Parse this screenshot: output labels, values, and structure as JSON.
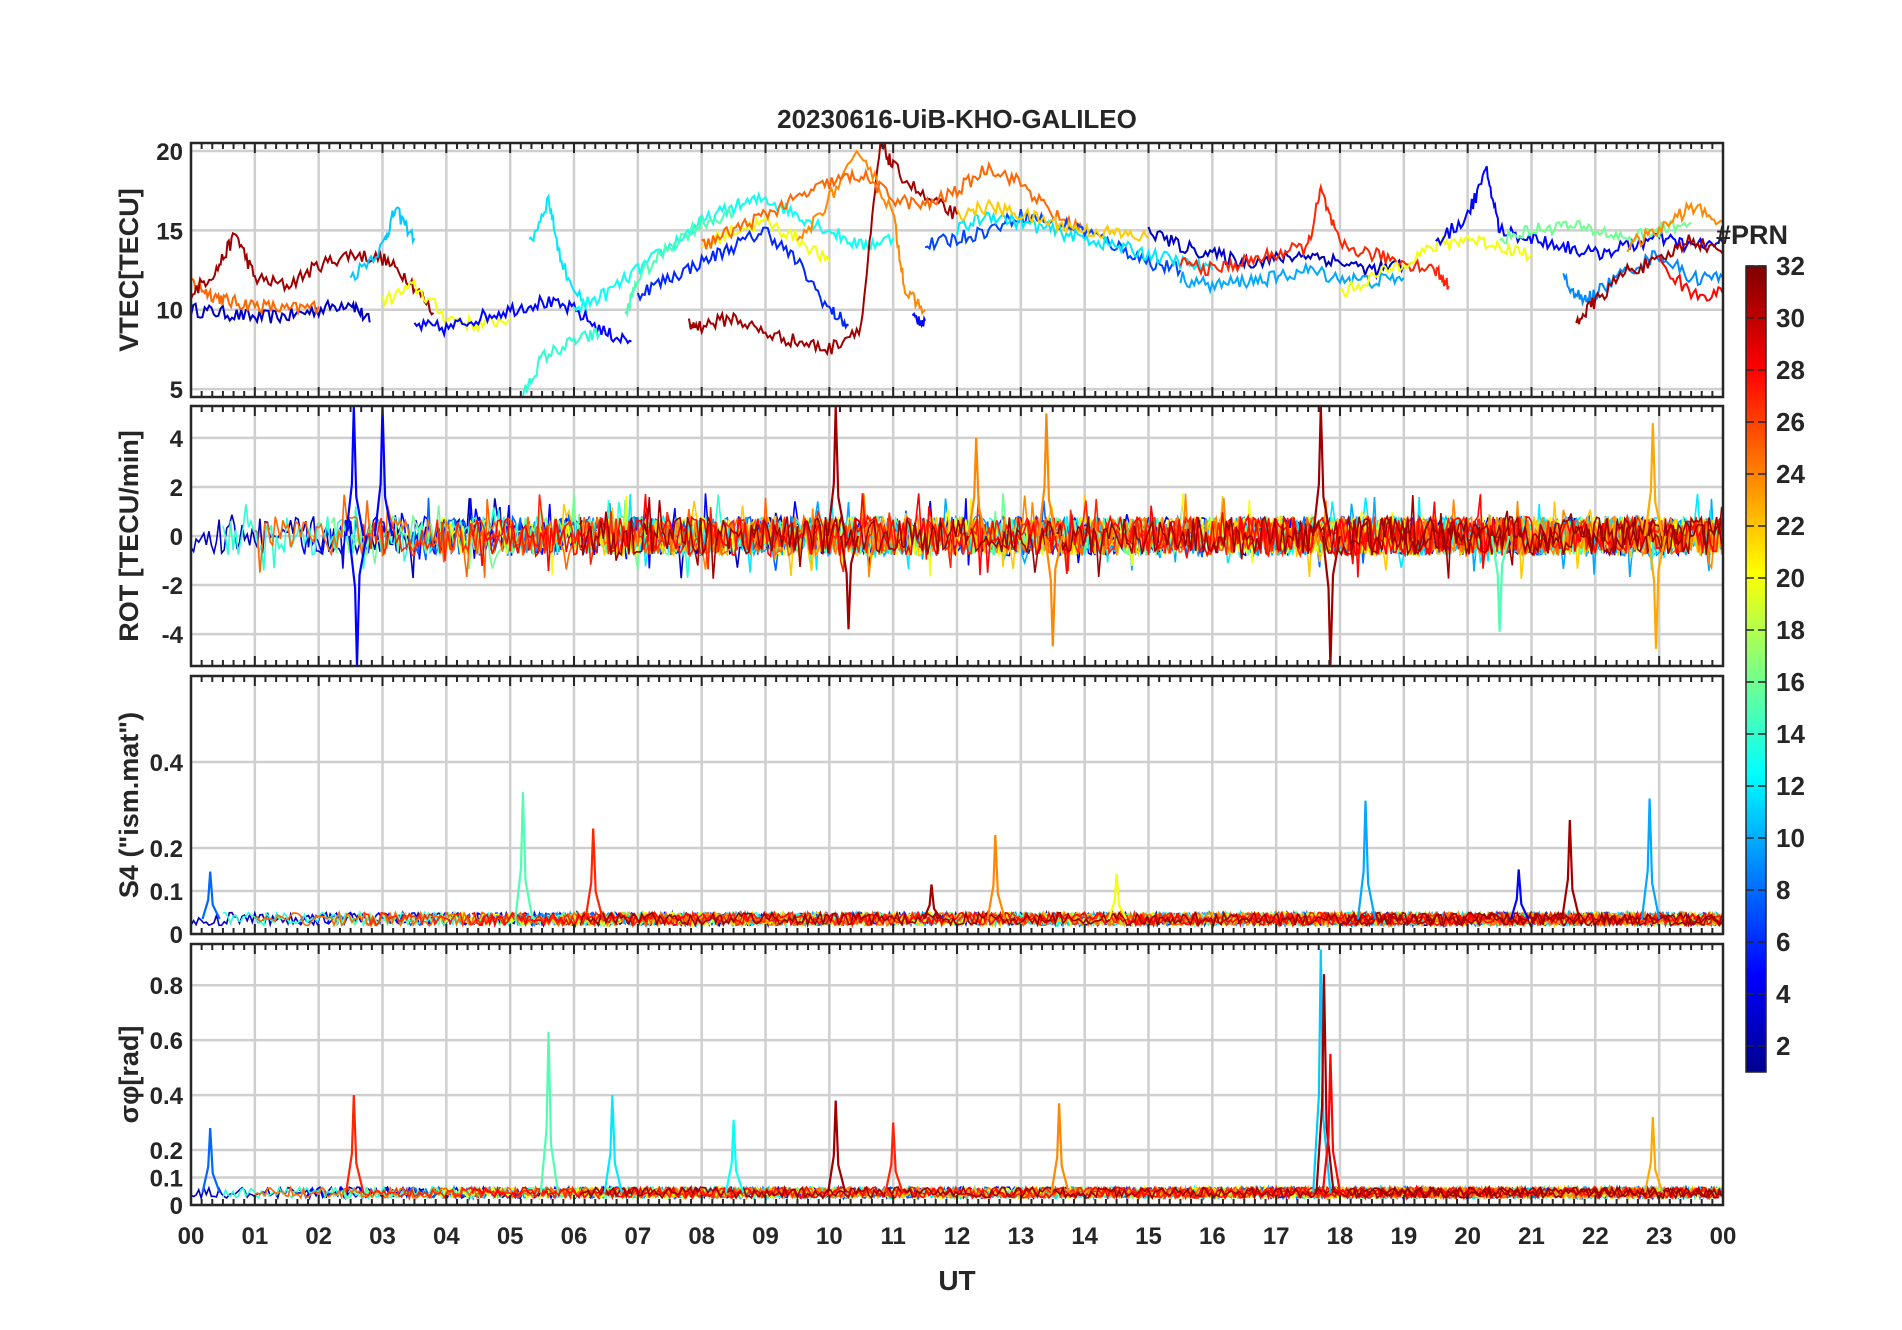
{
  "figure": {
    "title": "20230616-UiB-KHO-GALILEO",
    "xlabel": "UT",
    "x_ticks": [
      "00",
      "01",
      "02",
      "03",
      "04",
      "05",
      "06",
      "07",
      "08",
      "09",
      "10",
      "11",
      "12",
      "13",
      "14",
      "15",
      "16",
      "17",
      "18",
      "19",
      "20",
      "21",
      "22",
      "23",
      "00"
    ]
  },
  "colorbar": {
    "label": "#PRN",
    "min": 1,
    "max": 32,
    "ticks": [
      "2",
      "4",
      "6",
      "8",
      "10",
      "12",
      "14",
      "16",
      "18",
      "20",
      "22",
      "24",
      "26",
      "28",
      "30",
      "32"
    ],
    "colormap": "jet"
  },
  "chart_data": [
    {
      "type": "line",
      "panel": "vtec",
      "ylabel": "VTEC[TECU]",
      "ylim": [
        4.5,
        20.5
      ],
      "yticks": [
        "5",
        "10",
        "15",
        "20"
      ],
      "xlim": [
        0,
        24
      ],
      "grid": true,
      "series": [
        {
          "prn": 3,
          "x": [
            0.0,
            0.5,
            1.0,
            1.5,
            2.0,
            2.5,
            2.8
          ],
          "y": [
            10.0,
            9.8,
            9.5,
            9.6,
            10.0,
            10.5,
            9.2
          ]
        },
        {
          "prn": 25,
          "x": [
            0.0,
            0.3,
            0.6,
            1.0,
            1.5,
            2.0
          ],
          "y": [
            11.8,
            11.0,
            10.5,
            10.3,
            10.0,
            10.2
          ]
        },
        {
          "prn": 31,
          "x": [
            0.0,
            0.4,
            0.7,
            1.0,
            1.5,
            2.0,
            2.5,
            3.0,
            3.4,
            3.8
          ],
          "y": [
            11.0,
            12.5,
            14.8,
            12.0,
            11.5,
            12.8,
            13.5,
            13.2,
            12.0,
            9.8
          ]
        },
        {
          "prn": 11,
          "x": [
            2.5,
            3.0,
            3.2,
            3.5
          ],
          "y": [
            12.0,
            14.0,
            16.3,
            14.5
          ]
        },
        {
          "prn": 20,
          "x": [
            3.0,
            3.5,
            4.0,
            4.5,
            5.0
          ],
          "y": [
            10.5,
            11.5,
            9.5,
            9.0,
            9.5
          ]
        },
        {
          "prn": 12,
          "x": [
            5.3,
            5.6,
            5.8,
            6.2
          ],
          "y": [
            14.0,
            17.0,
            13.0,
            9.8
          ]
        },
        {
          "prn": 5,
          "x": [
            3.5,
            4.0,
            4.5,
            5.0,
            5.5,
            6.0,
            6.5,
            6.9
          ],
          "y": [
            9.0,
            8.8,
            9.5,
            10.0,
            10.5,
            10.0,
            8.5,
            8.0
          ]
        },
        {
          "prn": 14,
          "x": [
            5.2,
            5.5,
            6.0,
            6.4
          ],
          "y": [
            4.5,
            7.0,
            8.0,
            8.5
          ]
        },
        {
          "prn": 13,
          "x": [
            6.0,
            6.5,
            7.0,
            7.5,
            8.0,
            8.5,
            9.0,
            9.5,
            10.0,
            10.5,
            11.0
          ],
          "y": [
            10.0,
            11.0,
            12.5,
            14.0,
            15.5,
            16.5,
            17.0,
            16.0,
            15.0,
            14.0,
            14.5
          ]
        },
        {
          "prn": 6,
          "x": [
            7.0,
            7.5,
            8.0,
            8.5,
            9.0,
            9.5,
            10.0,
            10.3
          ],
          "y": [
            11.0,
            12.0,
            13.0,
            14.0,
            15.0,
            13.0,
            10.0,
            9.0
          ]
        },
        {
          "prn": 15,
          "x": [
            6.8,
            7.0,
            7.5,
            8.0,
            8.5
          ],
          "y": [
            9.5,
            12.0,
            14.0,
            15.5,
            16.0
          ]
        },
        {
          "prn": 20,
          "x": [
            8.0,
            8.5,
            9.0,
            9.5,
            10.0
          ],
          "y": [
            14.0,
            15.0,
            15.5,
            14.5,
            13.0
          ]
        },
        {
          "prn": 31,
          "x": [
            7.8,
            8.0,
            8.5,
            9.0,
            9.5,
            10.0,
            10.5,
            10.8,
            11.0,
            11.5,
            12.0
          ],
          "y": [
            9.0,
            9.0,
            9.5,
            8.5,
            8.0,
            7.5,
            9.0,
            20.5,
            19.0,
            17.0,
            16.0
          ]
        },
        {
          "prn": 24,
          "x": [
            9.5,
            10.0,
            10.5,
            11.0,
            11.2,
            11.5
          ],
          "y": [
            14.0,
            17.0,
            20.0,
            16.0,
            11.0,
            10.0
          ]
        },
        {
          "prn": 25,
          "x": [
            8.0,
            8.5,
            9.0,
            9.5,
            10.0,
            10.5,
            11.0,
            11.5,
            12.0,
            12.5,
            13.0,
            13.5,
            14.0
          ],
          "y": [
            14.0,
            15.0,
            16.0,
            17.0,
            18.0,
            18.5,
            17.0,
            16.5,
            17.5,
            19.0,
            18.0,
            16.0,
            15.0
          ]
        },
        {
          "prn": 5,
          "x": [
            11.3,
            11.5
          ],
          "y": [
            9.5,
            9.3
          ]
        },
        {
          "prn": 7,
          "x": [
            11.5,
            12.0,
            12.5,
            13.0,
            13.5,
            14.0,
            14.5,
            15.0,
            15.5
          ],
          "y": [
            14.0,
            14.5,
            15.0,
            16.0,
            15.5,
            15.0,
            14.0,
            13.0,
            12.5
          ]
        },
        {
          "prn": 12,
          "x": [
            12.0,
            12.5,
            13.0,
            13.5,
            14.0,
            14.5,
            15.0,
            15.5,
            16.0
          ],
          "y": [
            15.0,
            16.0,
            15.5,
            15.0,
            14.5,
            14.0,
            13.5,
            13.0,
            12.5
          ]
        },
        {
          "prn": 22,
          "x": [
            12.0,
            12.5,
            13.0,
            13.5,
            14.0,
            14.5,
            15.0
          ],
          "y": [
            16.0,
            16.5,
            16.0,
            15.5,
            15.0,
            14.8,
            14.5
          ]
        },
        {
          "prn": 3,
          "x": [
            15.0,
            15.5,
            16.0,
            16.5,
            17.0,
            17.5,
            18.0,
            18.5,
            19.0
          ],
          "y": [
            15.0,
            14.0,
            13.5,
            13.0,
            13.2,
            13.5,
            13.0,
            12.5,
            12.8
          ]
        },
        {
          "prn": 27,
          "x": [
            15.5,
            16.0,
            16.5,
            17.0,
            17.5,
            17.7,
            18.0,
            18.5,
            19.0,
            19.5,
            19.7
          ],
          "y": [
            13.0,
            12.5,
            13.0,
            13.5,
            14.0,
            17.5,
            14.0,
            13.5,
            13.0,
            12.5,
            11.5
          ]
        },
        {
          "prn": 10,
          "x": [
            15.5,
            16.0,
            16.5,
            17.0,
            17.5,
            18.0,
            18.5,
            19.0
          ],
          "y": [
            12.0,
            11.5,
            11.8,
            12.0,
            12.5,
            12.0,
            11.8,
            12.0
          ]
        },
        {
          "prn": 20,
          "x": [
            18.0,
            18.5,
            19.0,
            19.5,
            20.0,
            20.5,
            21.0
          ],
          "y": [
            11.0,
            12.0,
            13.0,
            14.0,
            14.5,
            14.0,
            13.5
          ]
        },
        {
          "prn": 5,
          "x": [
            19.5,
            20.0,
            20.3,
            20.5,
            21.0,
            21.5,
            22.0,
            22.5,
            23.0,
            23.5,
            24.0
          ],
          "y": [
            14.0,
            16.0,
            18.7,
            15.0,
            14.5,
            14.0,
            13.5,
            14.0,
            14.5,
            14.0,
            14.2
          ]
        },
        {
          "prn": 9,
          "x": [
            21.5,
            21.8,
            22.0,
            22.5,
            23.0,
            23.5,
            24.0
          ],
          "y": [
            12.0,
            10.5,
            11.0,
            12.5,
            13.5,
            12.0,
            12.0
          ]
        },
        {
          "prn": 31,
          "x": [
            21.7,
            22.0,
            22.5,
            23.0,
            23.5,
            24.0
          ],
          "y": [
            9.3,
            10.5,
            12.5,
            13.0,
            14.5,
            13.5
          ]
        },
        {
          "prn": 16,
          "x": [
            20.5,
            21.0,
            21.5,
            22.0,
            22.5,
            23.0,
            23.5
          ],
          "y": [
            14.5,
            15.0,
            15.3,
            15.0,
            14.5,
            15.0,
            15.5
          ]
        },
        {
          "prn": 24,
          "x": [
            22.5,
            23.0,
            23.5,
            24.0
          ],
          "y": [
            14.0,
            15.0,
            16.5,
            15.5
          ]
        },
        {
          "prn": 28,
          "x": [
            23.0,
            23.5,
            24.0
          ],
          "y": [
            13.0,
            11.0,
            11.0
          ]
        }
      ]
    },
    {
      "type": "line",
      "panel": "rot",
      "ylabel": "ROT [TECU/min]",
      "ylim": [
        -5.3,
        5.3
      ],
      "yticks": [
        "-4",
        "-2",
        "0",
        "2",
        "4"
      ],
      "xlim": [
        0,
        24
      ],
      "grid": true,
      "note_data": "dense noisy traces around 0 with spikes",
      "spikes": [
        {
          "prn": 5,
          "x": 2.55,
          "y": 5.3
        },
        {
          "prn": 5,
          "x": 2.6,
          "y": -5.3
        },
        {
          "prn": 5,
          "x": 3.0,
          "y": 5.3
        },
        {
          "prn": 31,
          "x": 10.1,
          "y": 5.3
        },
        {
          "prn": 31,
          "x": 10.3,
          "y": -3.8
        },
        {
          "prn": 24,
          "x": 12.3,
          "y": 4.0
        },
        {
          "prn": 24,
          "x": 13.4,
          "y": 5.0
        },
        {
          "prn": 24,
          "x": 13.5,
          "y": -4.5
        },
        {
          "prn": 31,
          "x": 17.7,
          "y": 5.3
        },
        {
          "prn": 31,
          "x": 17.85,
          "y": -5.3
        },
        {
          "prn": 15,
          "x": 20.5,
          "y": -3.9
        },
        {
          "prn": 23,
          "x": 22.9,
          "y": 4.6
        },
        {
          "prn": 23,
          "x": 22.95,
          "y": -4.6
        }
      ]
    },
    {
      "type": "line",
      "panel": "s4",
      "ylabel": "S4 (\"ism.mat\")",
      "ylim": [
        0,
        0.6
      ],
      "yticks": [
        "0",
        "0.1",
        "0.2",
        "0.4"
      ],
      "xlim": [
        0,
        24
      ],
      "grid": true,
      "spikes": [
        {
          "prn": 8,
          "x": 0.3,
          "y": 0.145
        },
        {
          "prn": 15,
          "x": 5.2,
          "y": 0.33
        },
        {
          "prn": 27,
          "x": 6.3,
          "y": 0.245
        },
        {
          "prn": 31,
          "x": 11.6,
          "y": 0.115
        },
        {
          "prn": 24,
          "x": 12.6,
          "y": 0.23
        },
        {
          "prn": 20,
          "x": 14.5,
          "y": 0.14
        },
        {
          "prn": 10,
          "x": 18.4,
          "y": 0.31
        },
        {
          "prn": 5,
          "x": 20.8,
          "y": 0.15
        },
        {
          "prn": 31,
          "x": 21.6,
          "y": 0.265
        },
        {
          "prn": 10,
          "x": 22.85,
          "y": 0.315
        }
      ]
    },
    {
      "type": "line",
      "panel": "sigma_phi",
      "ylabel": "σφ[rad]",
      "ylim": [
        0,
        0.95
      ],
      "yticks": [
        "0",
        "0.1",
        "0.2",
        "0.4",
        "0.6",
        "0.8"
      ],
      "xlim": [
        0,
        24
      ],
      "grid": true,
      "spikes": [
        {
          "prn": 8,
          "x": 0.3,
          "y": 0.28
        },
        {
          "prn": 27,
          "x": 2.55,
          "y": 0.4
        },
        {
          "prn": 15,
          "x": 5.6,
          "y": 0.63
        },
        {
          "prn": 12,
          "x": 6.6,
          "y": 0.4
        },
        {
          "prn": 13,
          "x": 8.5,
          "y": 0.31
        },
        {
          "prn": 31,
          "x": 10.1,
          "y": 0.38
        },
        {
          "prn": 27,
          "x": 11.0,
          "y": 0.3
        },
        {
          "prn": 24,
          "x": 13.6,
          "y": 0.37
        },
        {
          "prn": 11,
          "x": 17.7,
          "y": 0.93
        },
        {
          "prn": 31,
          "x": 17.75,
          "y": 0.84
        },
        {
          "prn": 28,
          "x": 17.85,
          "y": 0.55
        },
        {
          "prn": 23,
          "x": 22.9,
          "y": 0.32
        }
      ]
    }
  ]
}
